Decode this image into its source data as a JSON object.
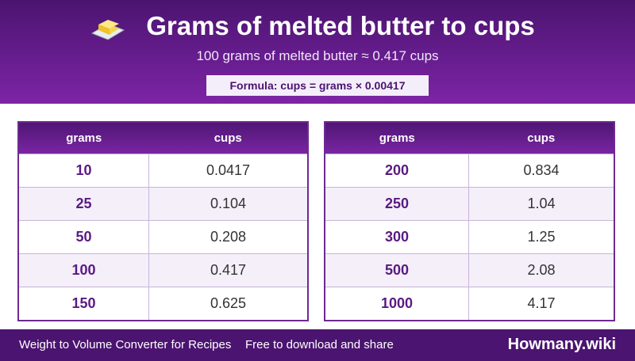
{
  "header": {
    "title": "Grams of melted butter to cups",
    "subtitle": "100 grams of melted butter ≈ 0.417 cups",
    "formula": "Formula: cups = grams × 0.00417"
  },
  "tables": [
    {
      "columns": [
        "grams",
        "cups"
      ],
      "rows": [
        [
          "10",
          "0.0417"
        ],
        [
          "25",
          "0.104"
        ],
        [
          "50",
          "0.208"
        ],
        [
          "100",
          "0.417"
        ],
        [
          "150",
          "0.625"
        ]
      ]
    },
    {
      "columns": [
        "grams",
        "cups"
      ],
      "rows": [
        [
          "200",
          "0.834"
        ],
        [
          "250",
          "1.04"
        ],
        [
          "300",
          "1.25"
        ],
        [
          "500",
          "2.08"
        ],
        [
          "1000",
          "4.17"
        ]
      ]
    }
  ],
  "footer": {
    "left": "Weight to Volume Converter for Recipes",
    "middle": "Free to download and share",
    "brand": "Howmany.wiki"
  }
}
